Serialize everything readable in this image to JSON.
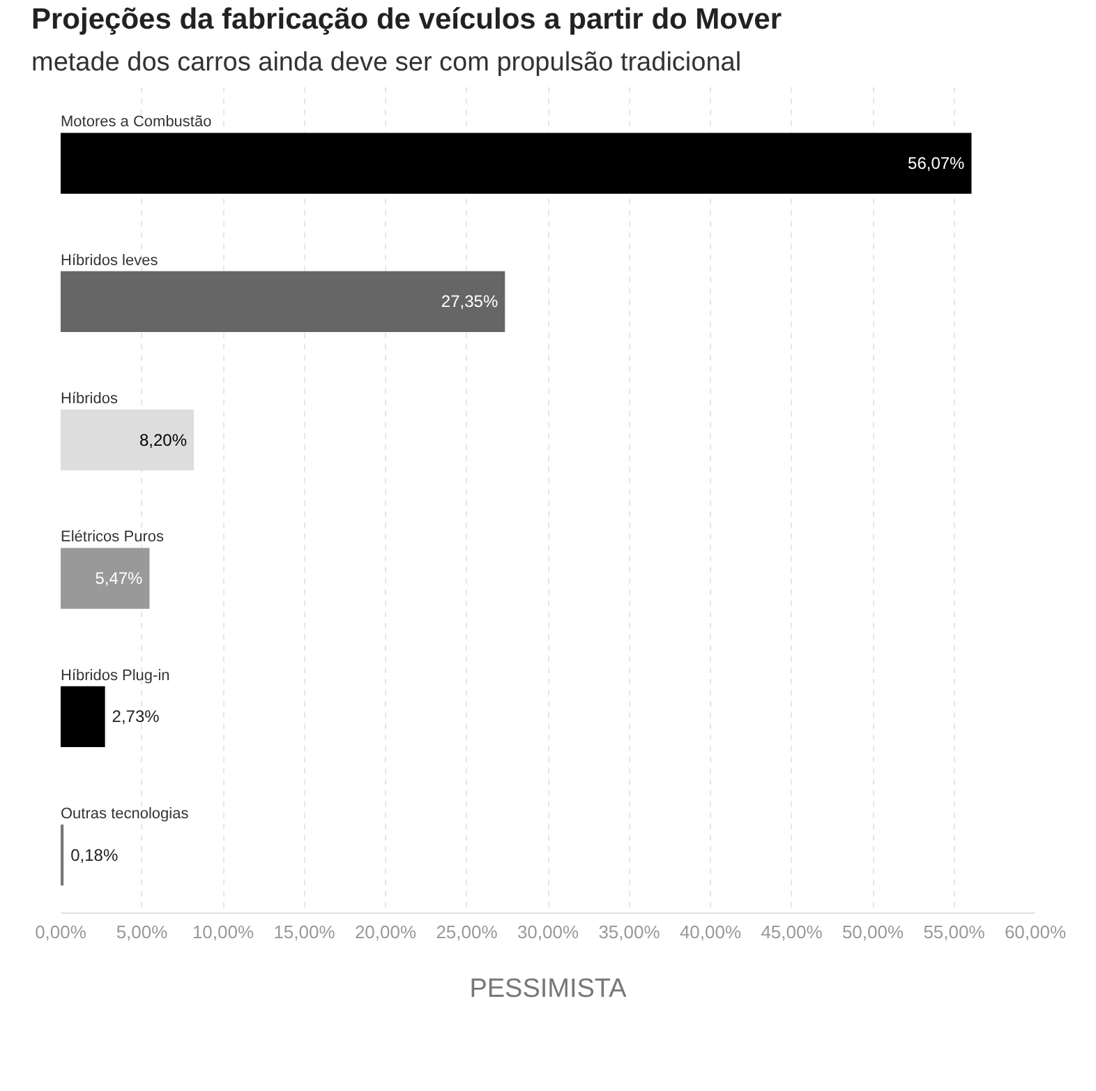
{
  "chart_data": {
    "type": "bar",
    "orientation": "horizontal",
    "title": "Projeções da fabricação de veículos a partir do Mover",
    "subtitle": "metade dos carros ainda deve ser com propulsão tradicional",
    "xlabel": "PESSIMISTA",
    "categories": [
      "Motores a Combustão",
      "Híbridos leves",
      "Híbridos",
      "Elétricos Puros",
      "Híbridos Plug-in",
      "Outras tecnologias"
    ],
    "values": [
      56.07,
      27.35,
      8.2,
      5.47,
      2.73,
      0.18
    ],
    "colors": [
      "#000000",
      "#666666",
      "#dddddd",
      "#999999",
      "#000000",
      "#777777"
    ],
    "value_labels": [
      "56,07%",
      "27,35%",
      "8,20%",
      "5,47%",
      "2,73%",
      "0,18%"
    ],
    "xlim": [
      0,
      60
    ],
    "xticks": [
      {
        "value": 0,
        "label": "0,00%"
      },
      {
        "value": 5,
        "label": "5,00%"
      },
      {
        "value": 10,
        "label": "10,00%"
      },
      {
        "value": 15,
        "label": "15,00%"
      },
      {
        "value": 20,
        "label": "20,00%"
      },
      {
        "value": 25,
        "label": "25,00%"
      },
      {
        "value": 30,
        "label": "30,00%"
      },
      {
        "value": 35,
        "label": "35,00%"
      },
      {
        "value": 40,
        "label": "40,00%"
      },
      {
        "value": 45,
        "label": "45,00%"
      },
      {
        "value": 50,
        "label": "50,00%"
      },
      {
        "value": 55,
        "label": "55,00%"
      },
      {
        "value": 60,
        "label": "60,00%"
      }
    ],
    "grid": "x"
  }
}
